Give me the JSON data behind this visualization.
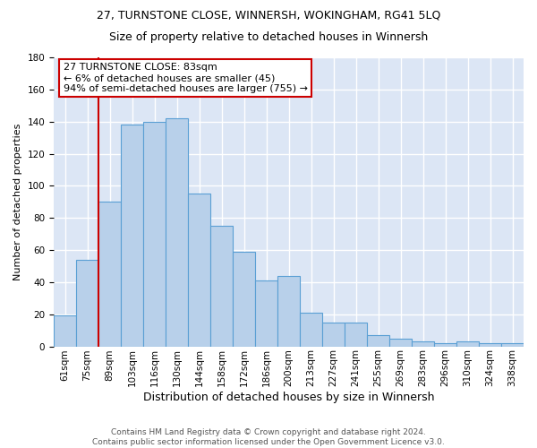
{
  "title": "27, TURNSTONE CLOSE, WINNERSH, WOKINGHAM, RG41 5LQ",
  "subtitle": "Size of property relative to detached houses in Winnersh",
  "xlabel": "Distribution of detached houses by size in Winnersh",
  "ylabel": "Number of detached properties",
  "bar_color": "#b8d0ea",
  "bar_edge_color": "#5a9fd4",
  "background_color": "#dce6f5",
  "grid_color": "#ffffff",
  "categories": [
    "61sqm",
    "75sqm",
    "89sqm",
    "103sqm",
    "116sqm",
    "130sqm",
    "144sqm",
    "158sqm",
    "172sqm",
    "186sqm",
    "200sqm",
    "213sqm",
    "227sqm",
    "241sqm",
    "255sqm",
    "269sqm",
    "283sqm",
    "296sqm",
    "310sqm",
    "324sqm",
    "338sqm"
  ],
  "values": [
    19,
    54,
    90,
    138,
    140,
    142,
    95,
    75,
    59,
    41,
    44,
    21,
    15,
    15,
    7,
    5,
    3,
    2,
    3,
    2,
    2
  ],
  "ylim": [
    0,
    180
  ],
  "yticks": [
    0,
    20,
    40,
    60,
    80,
    100,
    120,
    140,
    160,
    180
  ],
  "redline_x": 1.5,
  "annotation_line1": "27 TURNSTONE CLOSE: 83sqm",
  "annotation_line2": "← 6% of detached houses are smaller (45)",
  "annotation_line3": "94% of semi-detached houses are larger (755) →",
  "annotation_box_color": "#ffffff",
  "annotation_box_edge_color": "#cc0000",
  "footer_line1": "Contains HM Land Registry data © Crown copyright and database right 2024.",
  "footer_line2": "Contains public sector information licensed under the Open Government Licence v3.0.",
  "title_fontsize": 9,
  "subtitle_fontsize": 9,
  "ylabel_fontsize": 8,
  "xlabel_fontsize": 9,
  "tick_fontsize": 7.5,
  "footer_fontsize": 6.5,
  "annotation_fontsize": 8
}
